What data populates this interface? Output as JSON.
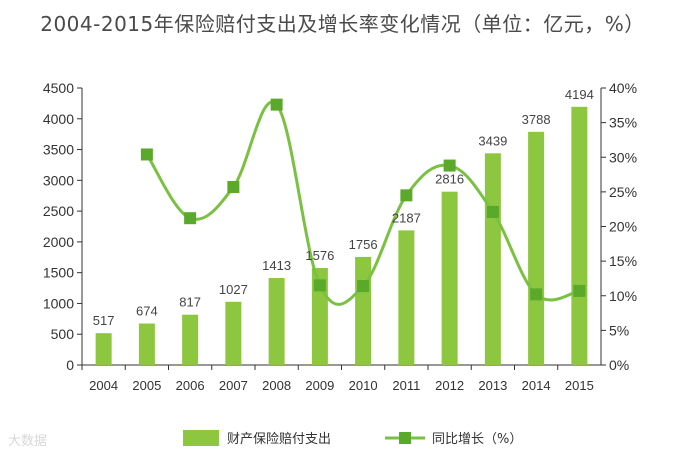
{
  "chart_data": {
    "type": "bar",
    "title": "2004-2015年保险赔付支出及增长率变化情况（单位：亿元，%）",
    "categories": [
      "2004",
      "2005",
      "2006",
      "2007",
      "2008",
      "2009",
      "2010",
      "2011",
      "2012",
      "2013",
      "2014",
      "2015"
    ],
    "series": [
      {
        "name": "财产保险赔付支出",
        "type": "bar",
        "axis": "left",
        "color": "#8dc63f",
        "values": [
          517,
          674,
          817,
          1027,
          1413,
          1576,
          1756,
          2187,
          2816,
          3439,
          3788,
          4194
        ]
      },
      {
        "name": "同比增长（%）",
        "type": "line",
        "axis": "right",
        "color": "#7ac142",
        "values": [
          null,
          30.4,
          21.2,
          25.7,
          37.6,
          11.5,
          11.4,
          24.5,
          28.8,
          22.1,
          10.2,
          10.7
        ]
      }
    ],
    "left_axis": {
      "ylim": [
        0,
        4500
      ],
      "ticks": [
        "0",
        "500",
        "1000",
        "1500",
        "2000",
        "2500",
        "3000",
        "3500",
        "4000",
        "4500"
      ]
    },
    "right_axis": {
      "ylim": [
        0,
        40
      ],
      "ticks": [
        "0%",
        "5%",
        "10%",
        "15%",
        "20%",
        "25%",
        "30%",
        "35%",
        "40%"
      ]
    },
    "legend_position": "bottom"
  },
  "watermark": "大数据"
}
